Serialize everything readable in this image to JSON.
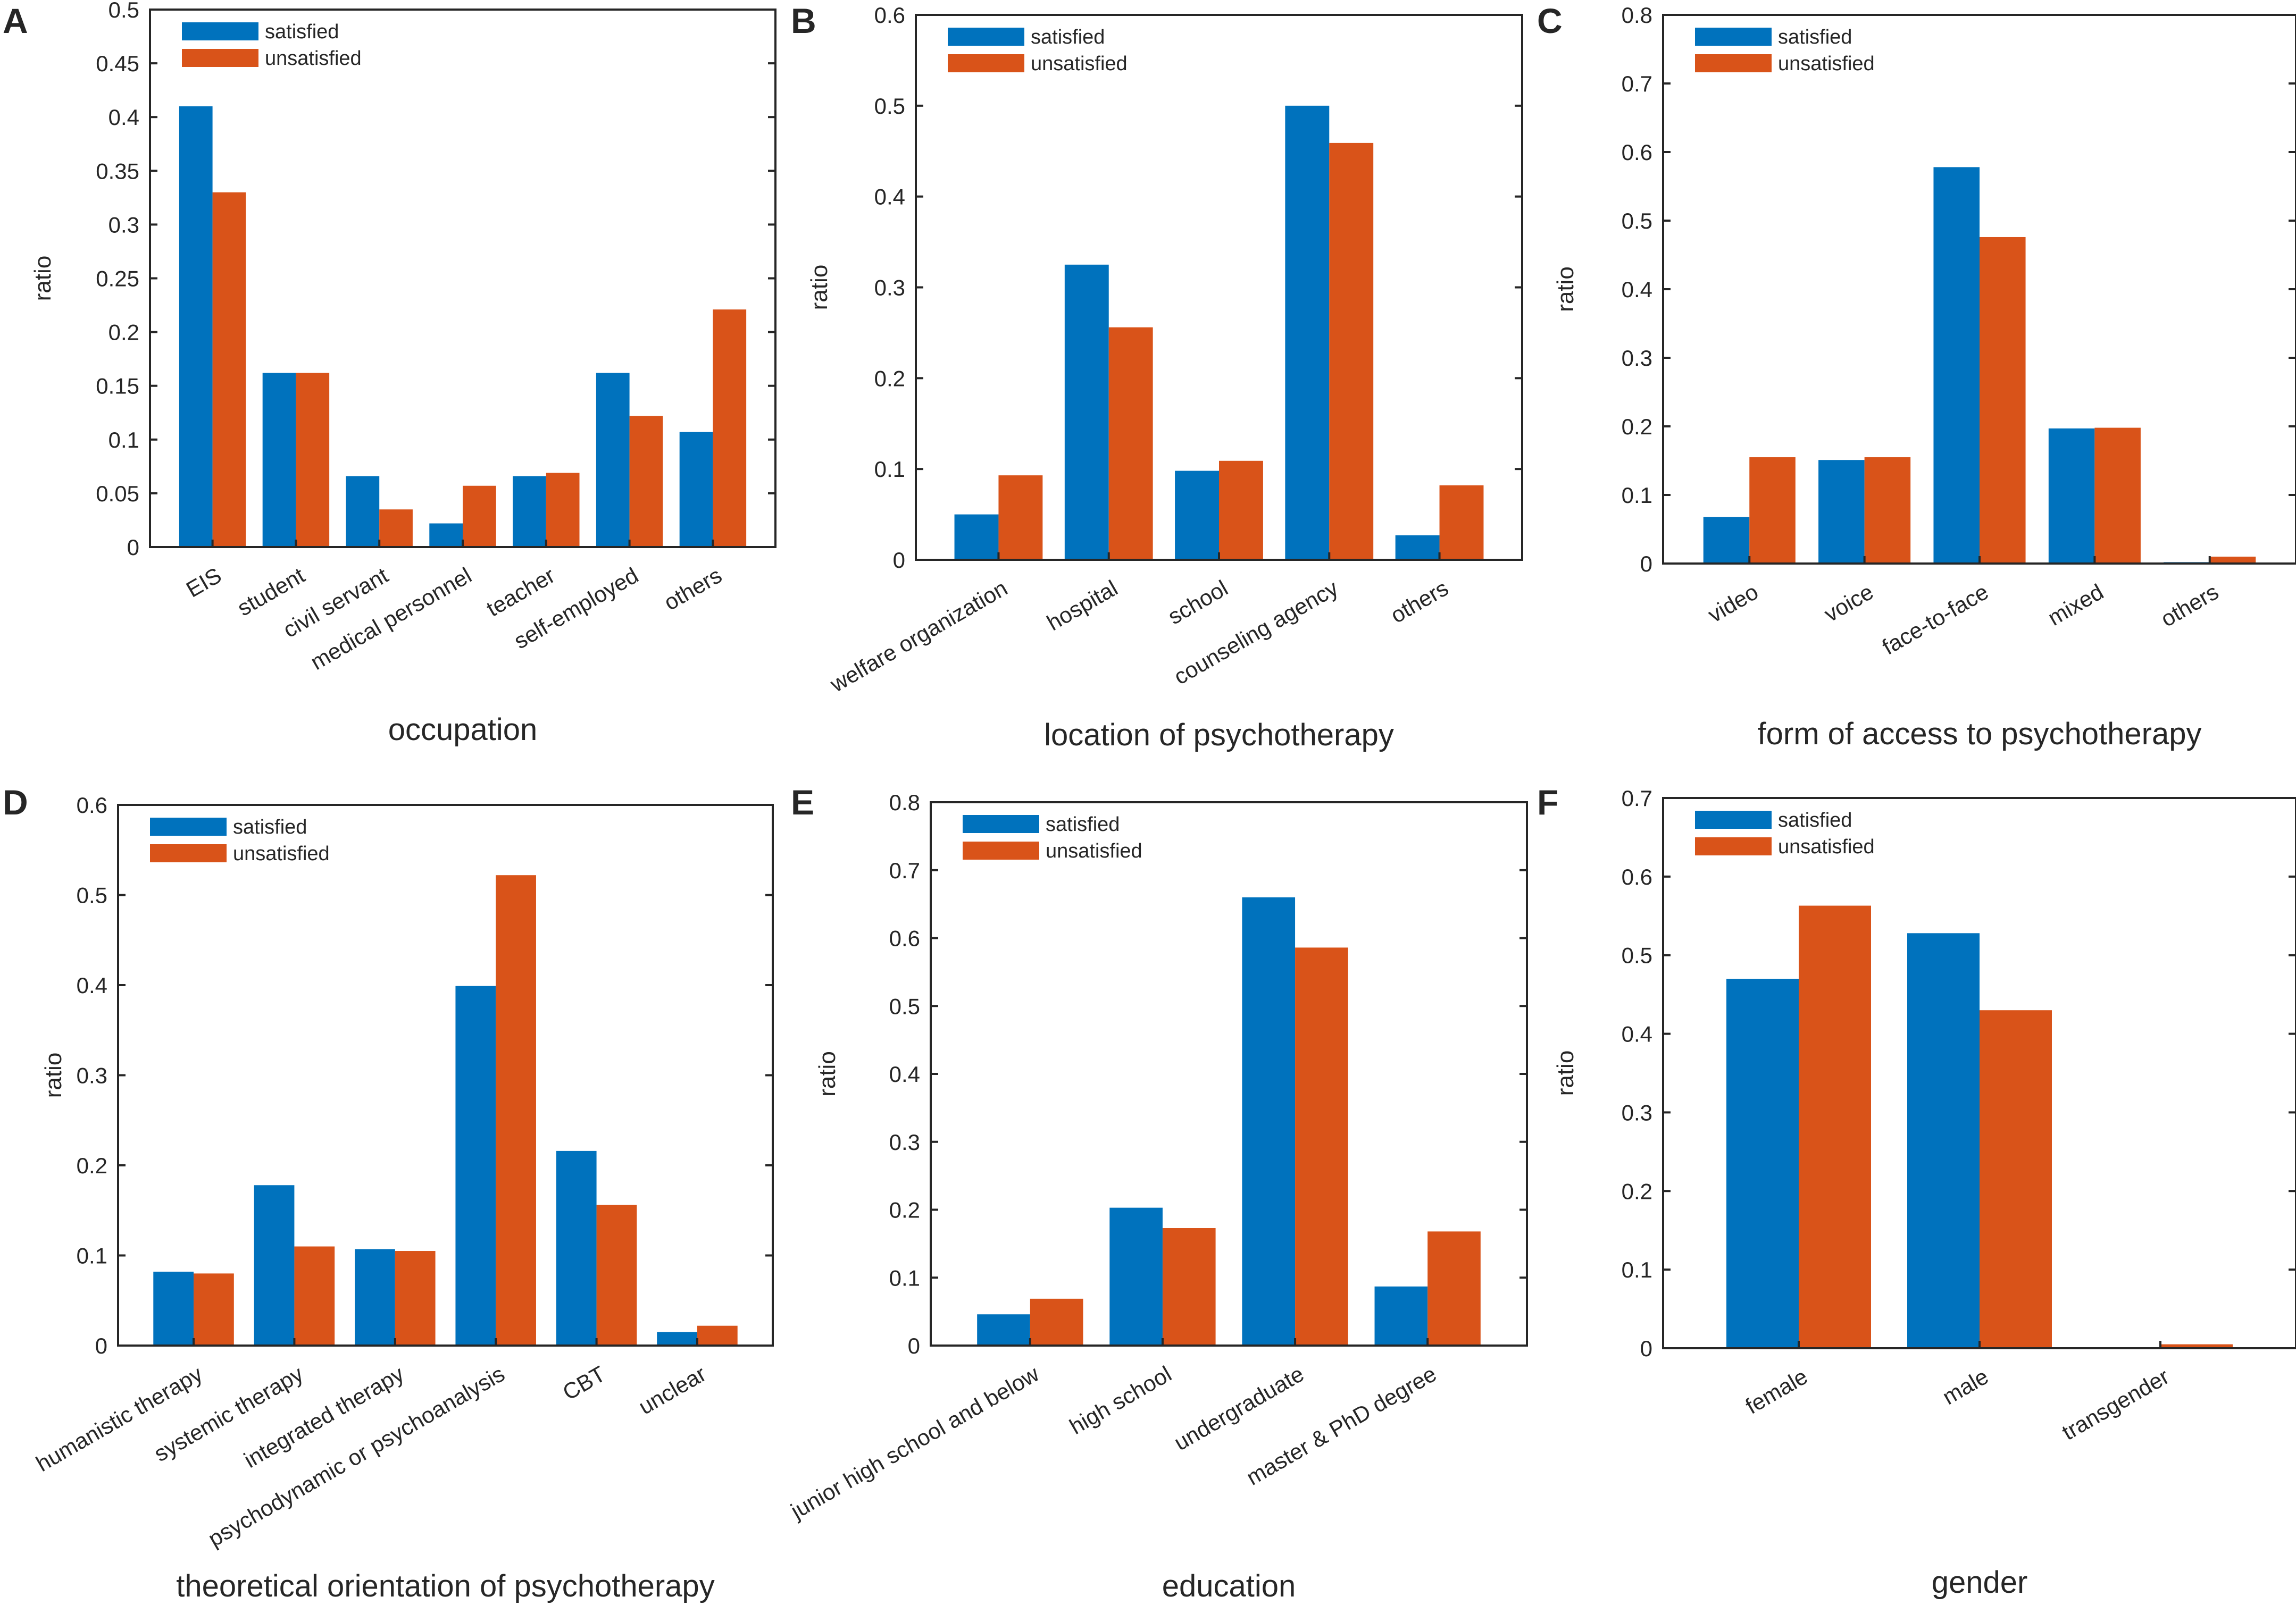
{
  "colors": {
    "satisfied": "#0072BD",
    "unsatisfied": "#D95319",
    "axis": "#262626"
  },
  "chart_data": [
    {
      "panel": "A",
      "type": "bar",
      "title": "",
      "xlabel": "occupation",
      "ylabel": "ratio",
      "ylim": [
        0,
        0.5
      ],
      "yticks": [
        "0",
        "0.05",
        "0.1",
        "0.15",
        "0.2",
        "0.25",
        "0.3",
        "0.35",
        "0.4",
        "0.45",
        "0.5"
      ],
      "categories": [
        "EIS",
        "student",
        "civil servant",
        "medical personnel",
        "teacher",
        "self-employed",
        "others"
      ],
      "series": [
        {
          "name": "satisfied",
          "values": [
            0.41,
            0.162,
            0.066,
            0.022,
            0.066,
            0.162,
            0.107
          ]
        },
        {
          "name": "unsatisfied",
          "values": [
            0.33,
            0.162,
            0.035,
            0.057,
            0.069,
            0.122,
            0.221
          ]
        }
      ],
      "legend": "top-left"
    },
    {
      "panel": "B",
      "type": "bar",
      "title": "",
      "xlabel": "location of psychotherapy",
      "ylabel": "ratio",
      "ylim": [
        0,
        0.6
      ],
      "yticks": [
        "0",
        "0.1",
        "0.2",
        "0.3",
        "0.4",
        "0.5",
        "0.6"
      ],
      "categories": [
        "welfare organization",
        "hospital",
        "school",
        "counseling agency",
        "others"
      ],
      "series": [
        {
          "name": "satisfied",
          "values": [
            0.05,
            0.325,
            0.098,
            0.5,
            0.027
          ]
        },
        {
          "name": "unsatisfied",
          "values": [
            0.093,
            0.256,
            0.109,
            0.459,
            0.082
          ]
        }
      ],
      "legend": "top-left"
    },
    {
      "panel": "C",
      "type": "bar",
      "title": "",
      "xlabel": "form of access to psychotherapy",
      "ylabel": "ratio",
      "ylim": [
        0,
        0.8
      ],
      "yticks": [
        "0",
        "0.1",
        "0.2",
        "0.3",
        "0.4",
        "0.5",
        "0.6",
        "0.7",
        "0.8"
      ],
      "categories": [
        "video",
        "voice",
        "face-to-face",
        "mixed",
        "others"
      ],
      "series": [
        {
          "name": "satisfied",
          "values": [
            0.068,
            0.151,
            0.578,
            0.197,
            0.002
          ]
        },
        {
          "name": "unsatisfied",
          "values": [
            0.155,
            0.155,
            0.476,
            0.198,
            0.01
          ]
        }
      ],
      "legend": "top-left"
    },
    {
      "panel": "D",
      "type": "bar",
      "title": "",
      "xlabel": "theoretical orientation of psychotherapy",
      "ylabel": "ratio",
      "ylim": [
        0,
        0.6
      ],
      "yticks": [
        "0",
        "0.1",
        "0.2",
        "0.3",
        "0.4",
        "0.5",
        "0.6"
      ],
      "categories": [
        "humanistic therapy",
        "systemic therapy",
        "integrated therapy",
        "psychodynamic or psychoanalysis",
        "CBT",
        "unclear"
      ],
      "series": [
        {
          "name": "satisfied",
          "values": [
            0.082,
            0.178,
            0.107,
            0.399,
            0.216,
            0.015
          ]
        },
        {
          "name": "unsatisfied",
          "values": [
            0.08,
            0.11,
            0.105,
            0.522,
            0.156,
            0.022
          ]
        }
      ],
      "legend": "top-left"
    },
    {
      "panel": "E",
      "type": "bar",
      "title": "",
      "xlabel": "education",
      "ylabel": "ratio",
      "ylim": [
        0,
        0.8
      ],
      "yticks": [
        "0",
        "0.1",
        "0.2",
        "0.3",
        "0.4",
        "0.5",
        "0.6",
        "0.7",
        "0.8"
      ],
      "categories": [
        "junior high school and below",
        "high school",
        "undergraduate",
        "master & PhD degree"
      ],
      "series": [
        {
          "name": "satisfied",
          "values": [
            0.046,
            0.203,
            0.66,
            0.087
          ]
        },
        {
          "name": "unsatisfied",
          "values": [
            0.069,
            0.173,
            0.586,
            0.168
          ]
        }
      ],
      "legend": "top-left"
    },
    {
      "panel": "F",
      "type": "bar",
      "title": "",
      "xlabel": "gender",
      "ylabel": "ratio",
      "ylim": [
        0,
        0.7
      ],
      "yticks": [
        "0",
        "0.1",
        "0.2",
        "0.3",
        "0.4",
        "0.5",
        "0.6",
        "0.7"
      ],
      "categories": [
        "female",
        "male",
        "transgender"
      ],
      "series": [
        {
          "name": "satisfied",
          "values": [
            0.47,
            0.528,
            0
          ]
        },
        {
          "name": "unsatisfied",
          "values": [
            0.563,
            0.43,
            0.005
          ]
        }
      ],
      "legend": "top-left"
    }
  ]
}
